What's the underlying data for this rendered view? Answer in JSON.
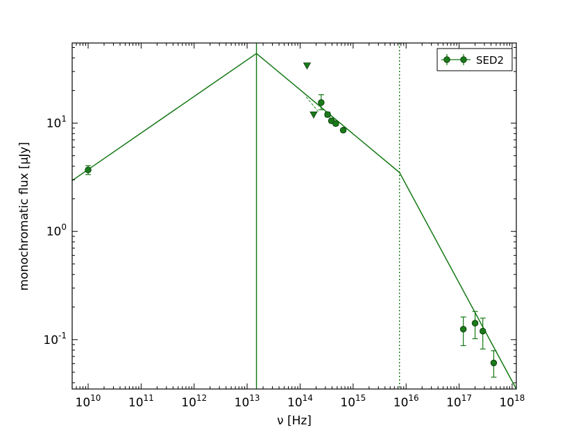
{
  "chart_data": {
    "type": "scatter",
    "title": "",
    "xlabel": "ν [Hz]",
    "ylabel": "monochromatic flux [μJy]",
    "xscale": "log",
    "yscale": "log",
    "xlim": [
      5000000000.0,
      1.2e+18
    ],
    "ylim": [
      0.035,
      55
    ],
    "grid": false,
    "legend": {
      "placement": "top-right",
      "entries": [
        "SED2"
      ]
    },
    "x_ticks": [
      {
        "base": "10",
        "exp": "10",
        "value": 10000000000.0
      },
      {
        "base": "10",
        "exp": "11",
        "value": 100000000000.0
      },
      {
        "base": "10",
        "exp": "12",
        "value": 1000000000000.0
      },
      {
        "base": "10",
        "exp": "13",
        "value": 10000000000000.0
      },
      {
        "base": "10",
        "exp": "14",
        "value": 100000000000000.0
      },
      {
        "base": "10",
        "exp": "15",
        "value": 1000000000000000.0
      },
      {
        "base": "10",
        "exp": "16",
        "value": 1e+16
      },
      {
        "base": "10",
        "exp": "17",
        "value": 1e+17
      },
      {
        "base": "10",
        "exp": "18",
        "value": 1e+18
      }
    ],
    "y_ticks": [
      {
        "base": "10",
        "exp": "1",
        "value": 10
      },
      {
        "base": "10",
        "exp": "0",
        "value": 1
      },
      {
        "base": "10",
        "exp": "-1",
        "value": 0.1
      }
    ],
    "colors": {
      "series": "#117711",
      "marker_fill": "#1a7a1a",
      "marker_edge": "#0b3a0b",
      "fit_line": "#2a8a2a"
    },
    "series": [
      {
        "name": "SED2",
        "x": [
          10000000000.0,
          250000000000000.0,
          330000000000000.0,
          390000000000000.0,
          470000000000000.0,
          650000000000000.0,
          1.2e+17,
          2e+17,
          2.8e+17,
          4.5e+17
        ],
        "y": [
          3.7,
          15.5,
          12.0,
          10.5,
          9.9,
          8.6,
          0.125,
          0.142,
          0.12,
          0.061
        ],
        "y_err_low": [
          0.35,
          2.2,
          0.6,
          0.4,
          0.4,
          0.3,
          0.037,
          0.04,
          0.038,
          0.016
        ],
        "y_err_high": [
          0.35,
          2.8,
          0.6,
          0.4,
          0.4,
          0.3,
          0.037,
          0.04,
          0.038,
          0.018
        ]
      }
    ],
    "upper_limits": [
      {
        "x": 135000000000000.0,
        "y": 34
      },
      {
        "x": 180000000000000.0,
        "y": 12
      }
    ],
    "model_line": {
      "x": [
        5000000000.0,
        15000000000000.0,
        7500000000000000.0,
        1.2e+18
      ],
      "y": [
        2.95,
        44,
        3.5,
        0.035
      ]
    },
    "vertical_lines": [
      {
        "x": 15000000000000.0,
        "style": "solid"
      },
      {
        "x": 7500000000000000.0,
        "style": "dotted"
      }
    ]
  }
}
